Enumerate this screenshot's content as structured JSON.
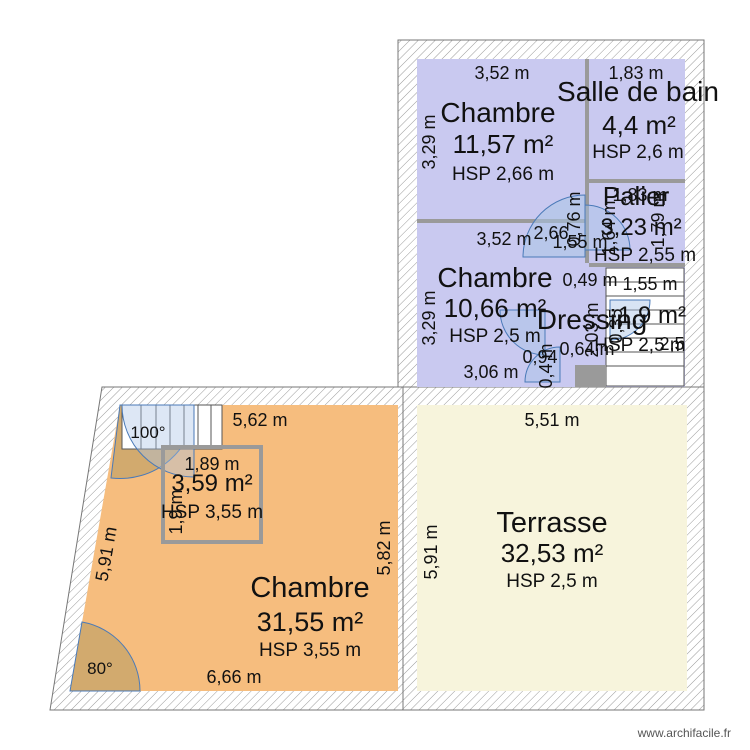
{
  "rooms": [
    {
      "id": "chambre-top",
      "name": "Chambre",
      "area": "11,57 m²",
      "hsp": "HSP 2,66 m"
    },
    {
      "id": "salle-de-bain",
      "name": "Salle de bain",
      "area": "4,4 m²",
      "hsp": "HSP 2,6 m"
    },
    {
      "id": "palier",
      "name": "Palier",
      "area": "3,23 m²",
      "hsp": "HSP 2,55 m"
    },
    {
      "id": "chambre-mid",
      "name": "Chambre",
      "area": "10,66 m²",
      "hsp": "HSP 2,5 m"
    },
    {
      "id": "dressing",
      "name": "Dressing",
      "area": "1,9 m²",
      "hsp": "HSP 2,5 m"
    },
    {
      "id": "stair-box",
      "name": "",
      "area": "3,59 m²",
      "hsp": "HSP 3,55 m"
    },
    {
      "id": "chambre-big",
      "name": "Chambre",
      "area": "31,55 m²",
      "hsp": "HSP 3,55 m"
    },
    {
      "id": "terrasse",
      "name": "Terrasse",
      "area": "32,53 m²",
      "hsp": "HSP 2,5 m"
    }
  ],
  "dimensions": {
    "top_chambre_width": "3,52 m",
    "top_chambre_height": "3,29 m",
    "sdb_width": "1,83 m",
    "mid_chambre_width": "3,52 m",
    "mid_chambre_height": "3,29 m",
    "mid_chambre_bottom": "3,06 m",
    "big_top": "5,62 m",
    "big_left": "5,91 m",
    "big_right": "5,82 m",
    "big_bottom": "6,66 m",
    "stair_box_width": "1,89 m",
    "stair_box_height": "1,9 m",
    "terrasse_top": "5,51 m",
    "terrasse_left": "5,91 m",
    "palier_a": "1,83 m",
    "palier_b": "1,79 m",
    "misc_a": "0,76 m",
    "misc_b": "1,64 m",
    "misc_c": "1,55 m",
    "misc_d": "1,55 m",
    "misc_e": "0,49 m",
    "misc_f": "2,03 m",
    "misc_g": "0,64 m",
    "misc_h": "0,4 m",
    "misc_i": "0,94",
    "misc_j": "2,66",
    "misc_k": "0,35",
    "misc_l": "2,5"
  },
  "angles": {
    "top_left": "100°",
    "bottom_left": "80°"
  },
  "watermark": "www.archifacile.fr"
}
